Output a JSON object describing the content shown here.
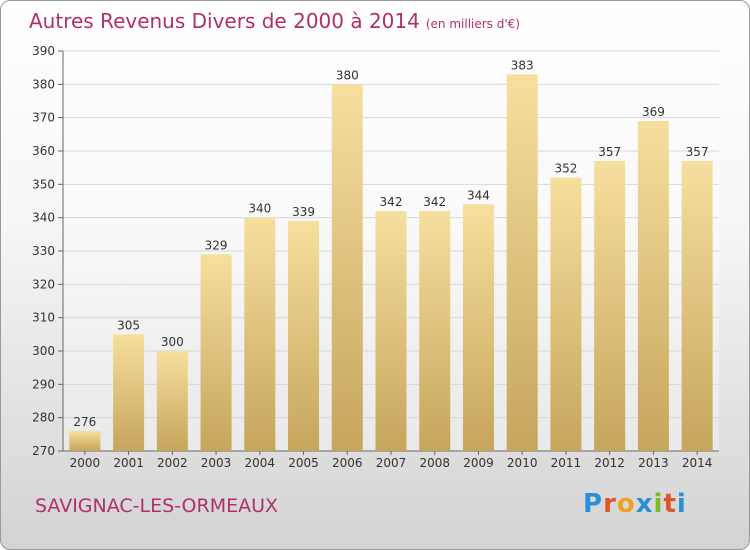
{
  "header": {
    "title": "Autres Revenus Divers de 2000 à 2014",
    "unit": "(en milliers d'€)"
  },
  "footer": {
    "commune": "SAVIGNAC-LES-ORMEAUX",
    "logo_letters": [
      "P",
      "r",
      "o",
      "x",
      "i",
      "t",
      "i"
    ],
    "logo_colors": [
      "#2a8fd6",
      "#e0542a",
      "#f0a020",
      "#2a8fd6",
      "#7cb92c",
      "#e0542a",
      "#2a8fd6"
    ]
  },
  "colors": {
    "title": "#b0306a",
    "bar_top": "#f6df9d",
    "bar_bottom": "#c6a55c",
    "grid": "#d8d8d8",
    "axis_text": "#333333"
  },
  "chart_data": {
    "type": "bar",
    "title": "Autres Revenus Divers de 2000 à 2014",
    "xlabel": "",
    "ylabel": "",
    "categories": [
      "2000",
      "2001",
      "2002",
      "2003",
      "2004",
      "2005",
      "2006",
      "2007",
      "2008",
      "2009",
      "2010",
      "2011",
      "2012",
      "2013",
      "2014"
    ],
    "values": [
      276,
      305,
      300,
      329,
      340,
      339,
      380,
      342,
      342,
      344,
      383,
      352,
      357,
      369,
      357
    ],
    "ylim": [
      270,
      390
    ],
    "yticks": [
      270,
      280,
      290,
      300,
      310,
      320,
      330,
      340,
      350,
      360,
      370,
      380,
      390
    ],
    "grid": true,
    "data_labels": true
  }
}
